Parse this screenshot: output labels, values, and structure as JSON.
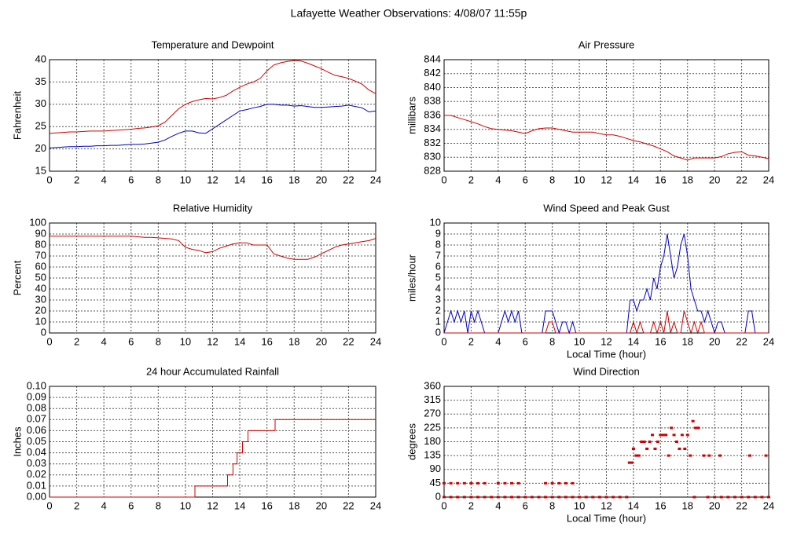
{
  "title": "Lafayette Weather Observations: 4/08/07 11:55p",
  "chart_data": [
    {
      "type": "line",
      "title": "Temperature and Dewpoint",
      "ylabel": "Fahrenheit",
      "x": [
        0,
        0.5,
        1,
        1.5,
        2,
        2.5,
        3,
        3.5,
        4,
        4.5,
        5,
        5.5,
        6,
        6.5,
        7,
        7.5,
        8,
        8.5,
        9,
        9.5,
        10,
        10.5,
        11,
        11.5,
        12,
        12.5,
        13,
        13.5,
        14,
        14.5,
        15,
        15.5,
        16,
        16.5,
        17,
        17.5,
        18,
        18.5,
        19,
        19.5,
        20,
        20.5,
        21,
        21.5,
        22,
        22.5,
        23,
        23.5,
        24
      ],
      "series": [
        {
          "color": "#d00000",
          "values": [
            23.5,
            23.6,
            23.7,
            23.8,
            23.8,
            23.9,
            24,
            24,
            24,
            24.1,
            24.2,
            24.3,
            24.4,
            24.6,
            24.7,
            24.9,
            25.2,
            26,
            27.5,
            29,
            30,
            30.6,
            31,
            31.3,
            31.2,
            31.5,
            32,
            33,
            33.8,
            34.5,
            35,
            35.8,
            37.5,
            38.8,
            39.3,
            39.6,
            39.8,
            39.7,
            39.2,
            38.6,
            38,
            37.2,
            36.5,
            36.2,
            35.8,
            35.2,
            34.5,
            33.2,
            32.4
          ]
        },
        {
          "color": "#0000c0",
          "values": [
            20.2,
            20.3,
            20.4,
            20.5,
            20.5,
            20.6,
            20.6,
            20.7,
            20.7,
            20.8,
            20.8,
            20.9,
            21,
            21,
            21.1,
            21.3,
            21.5,
            22,
            22.8,
            23.5,
            24,
            24,
            23.6,
            23.5,
            24.5,
            25.5,
            26.5,
            27.5,
            28.5,
            28.8,
            29.2,
            29.5,
            30,
            30,
            29.8,
            29.8,
            29.6,
            29.7,
            29.5,
            29.3,
            29.3,
            29.4,
            29.5,
            29.6,
            29.8,
            29.5,
            29.2,
            28.3,
            28.5
          ]
        }
      ],
      "xlim": [
        0,
        24
      ],
      "xticks": [
        0,
        2,
        4,
        6,
        8,
        10,
        12,
        14,
        16,
        18,
        20,
        22,
        24
      ],
      "ylim": [
        15,
        40
      ],
      "yticks": [
        15,
        20,
        25,
        30,
        35,
        40
      ],
      "grid": true
    },
    {
      "type": "line",
      "title": "Air Pressure",
      "ylabel": "millibars",
      "x": [
        0,
        0.5,
        1,
        1.5,
        2,
        2.5,
        3,
        3.5,
        4,
        4.5,
        5,
        5.5,
        6,
        6.5,
        7,
        7.5,
        8,
        8.5,
        9,
        9.5,
        10,
        10.5,
        11,
        11.5,
        12,
        12.5,
        13,
        13.5,
        14,
        14.5,
        15,
        15.5,
        16,
        16.5,
        17,
        17.5,
        18,
        18.5,
        19,
        19.5,
        20,
        20.5,
        21,
        21.5,
        22,
        22.5,
        23,
        23.5,
        24
      ],
      "series": [
        {
          "color": "#d00000",
          "values": [
            836,
            836,
            835.7,
            835.4,
            835.1,
            834.8,
            834.4,
            834.1,
            834,
            833.9,
            833.8,
            833.6,
            833.4,
            833.8,
            834.1,
            834.2,
            834.2,
            834,
            833.8,
            833.6,
            833.6,
            833.6,
            833.6,
            833.4,
            833.2,
            833.2,
            833,
            832.7,
            832.4,
            832.2,
            831.9,
            831.6,
            831.2,
            830.8,
            830.2,
            829.9,
            829.6,
            829.9,
            829.9,
            829.9,
            829.9,
            830.1,
            830.5,
            830.7,
            830.8,
            830.3,
            830.2,
            830,
            829.8
          ]
        }
      ],
      "xlim": [
        0,
        24
      ],
      "xticks": [
        0,
        2,
        4,
        6,
        8,
        10,
        12,
        14,
        16,
        18,
        20,
        22,
        24
      ],
      "ylim": [
        828,
        844
      ],
      "yticks": [
        828,
        830,
        832,
        834,
        836,
        838,
        840,
        842,
        844
      ],
      "grid": true
    },
    {
      "type": "line",
      "title": "Relative Humidity",
      "ylabel": "Percent",
      "x": [
        0,
        0.5,
        1,
        1.5,
        2,
        2.5,
        3,
        3.5,
        4,
        4.5,
        5,
        5.5,
        6,
        6.5,
        7,
        7.5,
        8,
        8.5,
        9,
        9.5,
        10,
        10.5,
        11,
        11.5,
        12,
        12.5,
        13,
        13.5,
        14,
        14.5,
        15,
        15.5,
        16,
        16.5,
        17,
        17.5,
        18,
        18.5,
        19,
        19.5,
        20,
        20.5,
        21,
        21.5,
        22,
        22.5,
        23,
        23.5,
        24
      ],
      "series": [
        {
          "color": "#d00000",
          "values": [
            88,
            88,
            88,
            88,
            88,
            88,
            88,
            88,
            88,
            88,
            88,
            88,
            88,
            87.5,
            87,
            87,
            86.5,
            86,
            85.5,
            84,
            78,
            76,
            75,
            73,
            74,
            77,
            79,
            81,
            82,
            82,
            80,
            80,
            80,
            72,
            70,
            68,
            67,
            67,
            67,
            69,
            72,
            75,
            78,
            80,
            81,
            82,
            83,
            84,
            86
          ]
        }
      ],
      "xlim": [
        0,
        24
      ],
      "xticks": [
        0,
        2,
        4,
        6,
        8,
        10,
        12,
        14,
        16,
        18,
        20,
        22,
        24
      ],
      "ylim": [
        0,
        100
      ],
      "yticks": [
        0,
        10,
        20,
        30,
        40,
        50,
        60,
        70,
        80,
        90,
        100
      ],
      "grid": true
    },
    {
      "type": "line",
      "title": "Wind Speed and Peak Gust",
      "ylabel": "miles/hour",
      "xlabel": "Local Time (hour)",
      "x": [
        0,
        0.25,
        0.5,
        0.75,
        1,
        1.25,
        1.5,
        1.75,
        2,
        2.25,
        2.5,
        2.75,
        3,
        3.25,
        3.5,
        3.75,
        4,
        4.25,
        4.5,
        4.75,
        5,
        5.25,
        5.5,
        5.75,
        6,
        6.25,
        6.5,
        6.75,
        7,
        7.25,
        7.5,
        7.75,
        8,
        8.25,
        8.5,
        8.75,
        9,
        9.25,
        9.5,
        9.75,
        10,
        10.25,
        10.5,
        10.75,
        11,
        11.25,
        11.5,
        11.75,
        12,
        12.25,
        12.5,
        12.75,
        13,
        13.25,
        13.5,
        13.75,
        14,
        14.25,
        14.5,
        14.75,
        15,
        15.25,
        15.5,
        15.75,
        16,
        16.25,
        16.5,
        16.75,
        17,
        17.25,
        17.5,
        17.75,
        18,
        18.25,
        18.5,
        18.75,
        19,
        19.25,
        19.5,
        19.75,
        20,
        20.25,
        20.5,
        20.75,
        21,
        21.25,
        21.5,
        21.75,
        22,
        22.25,
        22.5,
        22.75,
        23,
        23.25,
        23.5,
        23.75,
        24
      ],
      "series": [
        {
          "color": "#0000c0",
          "values": [
            0,
            1,
            2,
            1,
            2,
            1,
            2,
            0,
            2,
            1,
            2,
            1,
            0,
            0,
            0,
            0,
            0,
            1,
            2,
            1,
            2,
            1,
            2,
            0,
            0,
            0,
            0,
            0,
            0,
            0,
            2,
            2,
            2,
            1,
            0,
            1,
            1,
            0,
            1,
            0,
            0,
            0,
            0,
            0,
            0,
            0,
            0,
            0,
            0,
            0,
            0,
            0,
            0,
            0,
            0,
            3,
            3,
            2,
            3,
            3,
            4,
            3,
            5,
            4,
            6,
            7,
            9,
            7,
            5,
            6,
            8,
            9,
            7,
            4,
            3,
            2,
            2,
            1,
            2,
            1,
            0,
            1,
            1,
            0,
            0,
            0,
            0,
            0,
            0,
            0,
            2,
            2,
            0,
            0,
            0,
            0,
            0
          ]
        },
        {
          "color": "#d00000",
          "values": [
            0,
            0,
            0,
            0,
            0,
            0,
            0,
            0,
            0,
            0,
            0,
            0,
            0,
            0,
            0,
            0,
            0,
            0,
            0,
            0,
            0,
            0,
            0,
            0,
            0,
            0,
            0,
            0,
            0,
            0,
            0,
            1,
            1,
            0,
            0,
            0,
            0,
            0,
            0,
            0,
            0,
            0,
            0,
            0,
            0,
            0,
            0,
            0,
            0,
            0,
            0,
            0,
            0,
            0,
            0,
            0,
            1,
            0,
            1,
            0,
            0,
            0,
            1,
            0,
            1,
            0,
            2,
            0,
            1,
            0,
            0,
            2,
            1,
            0,
            1,
            0,
            1,
            0,
            0,
            0,
            0,
            0,
            0,
            0,
            0,
            0,
            0,
            0,
            0,
            0,
            0,
            0,
            0,
            0,
            0,
            0,
            0
          ]
        }
      ],
      "xlim": [
        0,
        24
      ],
      "xticks": [
        0,
        2,
        4,
        6,
        8,
        10,
        12,
        14,
        16,
        18,
        20,
        22,
        24
      ],
      "ylim": [
        0,
        10
      ],
      "yticks": [
        0,
        1,
        2,
        3,
        4,
        5,
        6,
        7,
        8,
        9,
        10
      ],
      "grid": true
    },
    {
      "type": "line",
      "title": "24 hour Accumulated Rainfall",
      "ylabel": "Inches",
      "x": [
        0,
        10.7,
        10.7,
        13.1,
        13.1,
        13.5,
        13.5,
        13.8,
        13.8,
        14.2,
        14.2,
        14.6,
        14.6,
        16.6,
        16.6,
        24
      ],
      "series": [
        {
          "color": "#d00000",
          "values": [
            0,
            0,
            0.01,
            0.01,
            0.02,
            0.02,
            0.03,
            0.03,
            0.04,
            0.04,
            0.05,
            0.05,
            0.06,
            0.06,
            0.07,
            0.07
          ]
        }
      ],
      "xlim": [
        0,
        24
      ],
      "xticks": [
        0,
        2,
        4,
        6,
        8,
        10,
        12,
        14,
        16,
        18,
        20,
        22,
        24
      ],
      "ylim": [
        0,
        0.1
      ],
      "yticks": [
        {
          "value": 0,
          "label": "0.00"
        },
        {
          "value": 0.01,
          "label": "0.01"
        },
        {
          "value": 0.02,
          "label": "0.02"
        },
        {
          "value": 0.03,
          "label": "0.03"
        },
        {
          "value": 0.04,
          "label": "0.04"
        },
        {
          "value": 0.05,
          "label": "0.05"
        },
        {
          "value": 0.06,
          "label": "0.06"
        },
        {
          "value": 0.07,
          "label": "0.07"
        },
        {
          "value": 0.08,
          "label": "0.08"
        },
        {
          "value": 0.09,
          "label": "0.09"
        },
        {
          "value": 0.1,
          "label": "0.10"
        }
      ],
      "grid": true
    },
    {
      "type": "scatter",
      "title": "Wind Direction",
      "ylabel": "degrees",
      "xlabel": "Local Time (hour)",
      "x": [
        0,
        0.5,
        1,
        1.5,
        2,
        2.5,
        3,
        3.5,
        4,
        4.5,
        5,
        5.5,
        6,
        6.5,
        7,
        7.5,
        8,
        8.5,
        9,
        9.5,
        10,
        10.5,
        11,
        11.5,
        12,
        12.5,
        13,
        13.5,
        18.5,
        19.5,
        20,
        20.5,
        21,
        21.5,
        22,
        22.5,
        23,
        23.5,
        24,
        0,
        0.5,
        1,
        1.5,
        2,
        2.5,
        3,
        4,
        4.5,
        5,
        5.5,
        7.5,
        8,
        8.5,
        9,
        9.5,
        13.7,
        13.9,
        14,
        14.2,
        14.4,
        14.6,
        14.8,
        15,
        15.2,
        15.4,
        15.6,
        15.8,
        16,
        16.2,
        16.4,
        16.6,
        16.8,
        17,
        17.2,
        17.4,
        17.6,
        17.8,
        18,
        18.2,
        18.4,
        18.6,
        18.8,
        19.2,
        19.6,
        20.4,
        22.6,
        23.8
      ],
      "series": [
        {
          "color": "#d00000",
          "values": [
            0,
            0,
            0,
            0,
            0,
            0,
            0,
            0,
            0,
            0,
            0,
            0,
            0,
            0,
            0,
            0,
            0,
            0,
            0,
            0,
            0,
            0,
            0,
            0,
            0,
            0,
            0,
            0,
            0,
            0,
            0,
            0,
            0,
            0,
            0,
            0,
            0,
            0,
            0,
            45,
            45,
            45,
            45,
            45,
            45,
            45,
            45,
            45,
            45,
            45,
            45,
            45,
            45,
            45,
            45,
            112,
            112,
            157,
            135,
            135,
            180,
            180,
            157,
            180,
            202,
            157,
            180,
            202,
            202,
            202,
            135,
            225,
            202,
            180,
            157,
            202,
            157,
            202,
            135,
            247,
            225,
            225,
            135,
            135,
            135,
            135,
            135
          ]
        }
      ],
      "xlim": [
        0,
        24
      ],
      "xticks": [
        0,
        2,
        4,
        6,
        8,
        10,
        12,
        14,
        16,
        18,
        20,
        22,
        24
      ],
      "ylim": [
        0,
        360
      ],
      "yticks": [
        0,
        45,
        90,
        135,
        180,
        225,
        270,
        315,
        360
      ],
      "grid": true
    }
  ]
}
